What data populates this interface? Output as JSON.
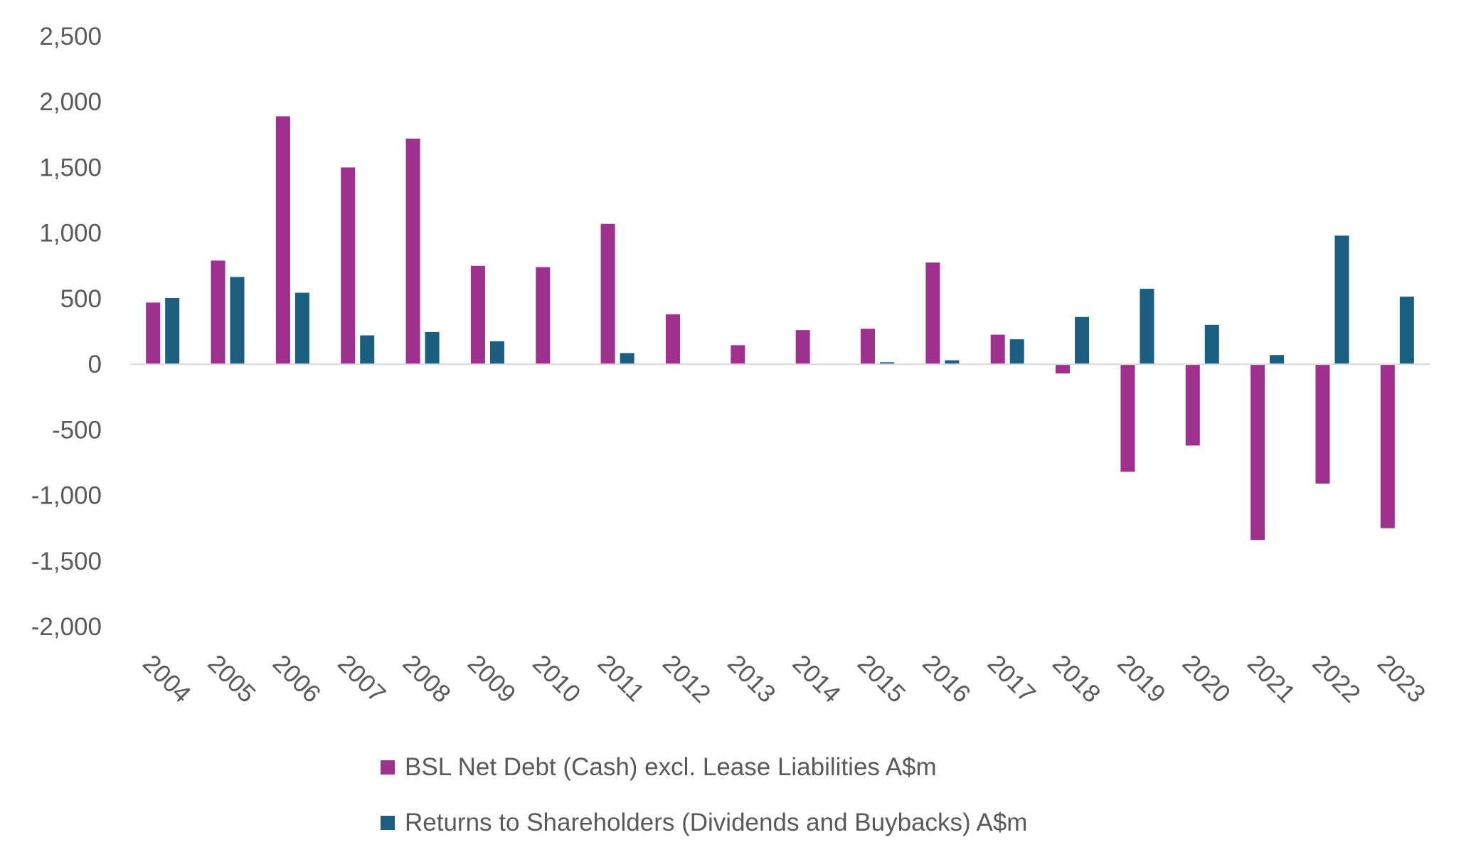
{
  "colors": {
    "net_debt": "#A0308E",
    "returns": "#1B5E80",
    "axis": "#d9d9d9",
    "text": "#595959"
  },
  "chart_data": {
    "type": "bar",
    "title": "",
    "xlabel": "",
    "ylabel": "",
    "ylim": [
      -2000,
      2500
    ],
    "yticks": [
      2500,
      2000,
      1500,
      1000,
      500,
      0,
      -500,
      -1000,
      -1500,
      -2000
    ],
    "ytick_labels": [
      "2,500",
      "2,000",
      "1,500",
      "1,000",
      "500",
      "0",
      "-500",
      "-1,000",
      "-1,500",
      "-2,000"
    ],
    "grid": false,
    "legend_position": "bottom",
    "categories": [
      "2004",
      "2005",
      "2006",
      "2007",
      "2008",
      "2009",
      "2010",
      "2011",
      "2012",
      "2013",
      "2014",
      "2015",
      "2016",
      "2017",
      "2018",
      "2019",
      "2020",
      "2021",
      "2022",
      "2023"
    ],
    "series": [
      {
        "name": "BSL Net Debt (Cash) excl. Lease Liabilities A$m",
        "color": "#A0308E",
        "values": [
          470,
          790,
          1890,
          1500,
          1720,
          750,
          740,
          1070,
          380,
          145,
          260,
          270,
          775,
          225,
          -70,
          -820,
          -620,
          -1340,
          -910,
          -1250
        ]
      },
      {
        "name": "Returns to Shareholders (Dividends and Buybacks) A$m",
        "color": "#1B5E80",
        "values": [
          505,
          665,
          545,
          220,
          245,
          175,
          0,
          85,
          0,
          0,
          0,
          15,
          30,
          190,
          360,
          575,
          300,
          70,
          980,
          515
        ]
      }
    ]
  }
}
